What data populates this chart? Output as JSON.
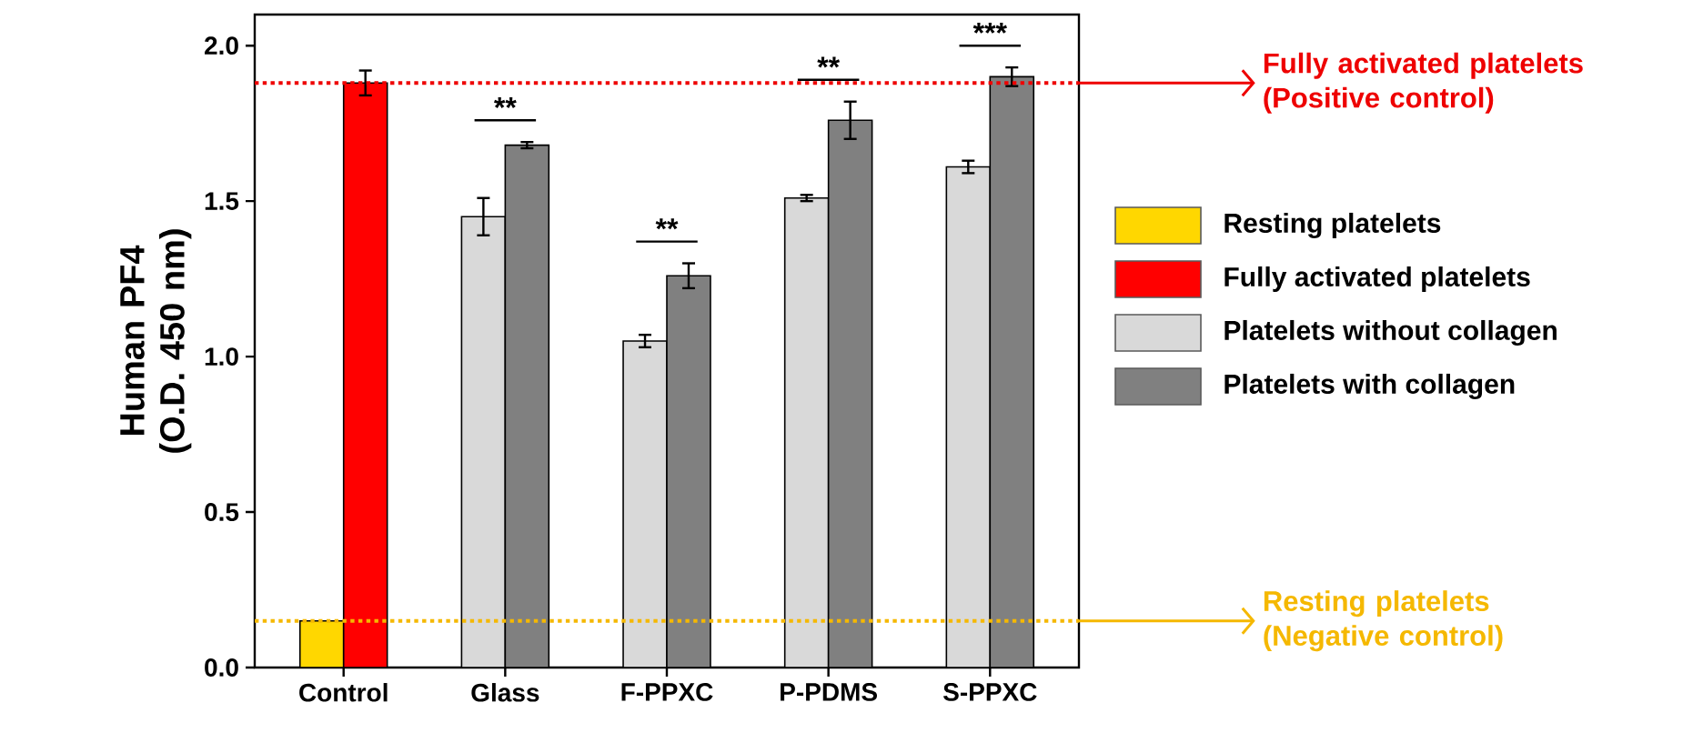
{
  "chart_data": {
    "type": "bar",
    "ylabel": "Human PF4 (O.D. 450 nm)",
    "categories": [
      "Control",
      "Glass",
      "F-PPXC",
      "P-PDMS",
      "S-PPXC"
    ],
    "series": [
      {
        "name": "Resting platelets",
        "color": "#ffd700",
        "values": [
          0.15,
          null,
          null,
          null,
          null
        ],
        "errors": [
          null,
          null,
          null,
          null,
          null
        ]
      },
      {
        "name": "Fully activated platelets",
        "color": "#ff0000",
        "values": [
          1.88,
          null,
          null,
          null,
          null
        ],
        "errors": [
          0.04,
          null,
          null,
          null,
          null
        ]
      },
      {
        "name": "Platelets without collagen",
        "color": "#d9d9d9",
        "values": [
          null,
          1.45,
          1.05,
          1.51,
          1.61
        ],
        "errors": [
          null,
          0.06,
          0.02,
          0.01,
          0.02
        ]
      },
      {
        "name": "Platelets with collagen",
        "color": "#808080",
        "values": [
          null,
          1.68,
          1.26,
          1.76,
          1.9
        ],
        "errors": [
          null,
          0.01,
          0.04,
          0.06,
          0.03
        ]
      }
    ],
    "ylim": [
      0,
      2.1
    ],
    "yticks": [
      {
        "value": 0,
        "label": "0.0"
      },
      {
        "value": 0.5,
        "label": "0.5"
      },
      {
        "value": 1,
        "label": "1.0"
      },
      {
        "value": 1.5,
        "label": "1.5"
      },
      {
        "value": 2,
        "label": "2.0"
      }
    ],
    "legend": "right",
    "ref_lines": [
      {
        "axis": "y",
        "value": 1.88,
        "label": "Fully activated platelets (Positive control)",
        "color": "#ee0000",
        "line_style": "dotted"
      },
      {
        "axis": "y",
        "value": 0.15,
        "label": "Resting platelets (Negative control)",
        "color": "#f5b800",
        "line_style": "dotted"
      }
    ],
    "annotations": [
      "**",
      "**",
      "**",
      "***"
    ]
  }
}
